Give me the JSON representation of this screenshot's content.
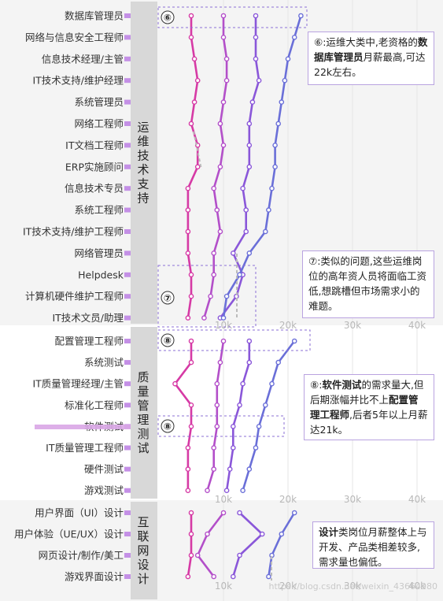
{
  "chart_data": {
    "type": "line",
    "x_ticks": [
      "10k",
      "20k",
      "30k",
      "40k"
    ],
    "xlim": [
      0,
      40000
    ],
    "grid": true,
    "series": [
      {
        "color": "#d63aa5"
      },
      {
        "color": "#b34fc9"
      },
      {
        "color": "#8a57d9"
      },
      {
        "color": "#6a6fd8"
      }
    ],
    "groups": [
      {
        "name": "运维技术支持",
        "jobs": [
          {
            "name": "数据库管理员",
            "values": [
              5000,
              10000,
              15000,
              22000
            ]
          },
          {
            "name": "网络与信息安全工程师",
            "values": [
              5000,
              10000,
              15000,
              21000
            ]
          },
          {
            "name": "信息技术经理/主管",
            "values": [
              5500,
              10500,
              15000,
              20000
            ]
          },
          {
            "name": "IT技术支持/维护经理",
            "values": [
              6000,
              10500,
              15500,
              19500
            ]
          },
          {
            "name": "系统管理员",
            "values": [
              5500,
              10000,
              14500,
              19000
            ]
          },
          {
            "name": "网络工程师",
            "values": [
              5000,
              9500,
              14000,
              18500
            ]
          },
          {
            "name": "IT文档工程师",
            "values": [
              6000,
              10000,
              14000,
              18000
            ]
          },
          {
            "name": "ERP实施顾问",
            "values": [
              6000,
              9500,
              14000,
              18000
            ]
          },
          {
            "name": "信息技术专员",
            "values": [
              4500,
              8500,
              13000,
              17500
            ]
          },
          {
            "name": "系统工程师",
            "values": [
              4500,
              9000,
              13500,
              17000
            ]
          },
          {
            "name": "IT技术支持/维护工程师",
            "values": [
              4500,
              9500,
              13500,
              16500
            ]
          },
          {
            "name": "网络管理员",
            "values": [
              4500,
              8500,
              11500,
              14000
            ]
          },
          {
            "name": "Helpdesk",
            "values": [
              5000,
              8500,
              13000,
              12500
            ]
          },
          {
            "name": "计算机硬件维护工程师",
            "values": [
              5000,
              8000,
              12000,
              10500
            ]
          },
          {
            "name": "IT技术文员/助理",
            "values": [
              4500,
              7000,
              9500,
              10000
            ]
          }
        ]
      },
      {
        "name": "质量管理测试",
        "jobs": [
          {
            "name": "配置管理工程师",
            "values": [
              5000,
              10000,
              14000,
              21000
            ]
          },
          {
            "name": "系统测试",
            "values": [
              5000,
              9500,
              14000,
              18500
            ]
          },
          {
            "name": "IT质量管理经理/主管",
            "values": [
              2500,
              9000,
              13000,
              17500
            ]
          },
          {
            "name": "标准化工程师",
            "values": [
              5000,
              9000,
              12500,
              16500
            ]
          },
          {
            "name": "软件测试",
            "values": [
              5000,
              9000,
              11500,
              15500
            ]
          },
          {
            "name": "IT质量管理工程师",
            "values": [
              4500,
              8500,
              11500,
              15000
            ]
          },
          {
            "name": "硬件测试",
            "values": [
              4500,
              8500,
              11000,
              14000
            ]
          },
          {
            "name": "游戏测试",
            "values": [
              4500,
              7500,
              10500,
              13000
            ]
          }
        ]
      },
      {
        "name": "互联网设计",
        "jobs": [
          {
            "name": "用户界面（UI）设计",
            "values": [
              5000,
              10000,
              12500,
              21000
            ]
          },
          {
            "name": "用户体验（UE/UX）设计",
            "values": [
              5000,
              7500,
              16000,
              19000
            ]
          },
          {
            "name": "网页设计/制作/美工",
            "values": [
              5000,
              6000,
              12500,
              17500
            ]
          },
          {
            "name": "游戏界面设计",
            "values": [
              4500,
              8500,
              11500,
              17000
            ]
          }
        ]
      }
    ],
    "markers": [
      "⑥",
      "⑦",
      "⑧",
      "⑧"
    ]
  },
  "notes": {
    "n6": [
      {
        "t": "⑥:运维大类中,老资格的"
      },
      {
        "t": "数据库管理员",
        "b": true
      },
      {
        "t": "月薪最高,可达22k左右。"
      }
    ],
    "n7": [
      {
        "t": "⑦:类似的问题,这些运维岗位的高年资人员将面临工资低,想跳槽但市场需求小的难题。"
      }
    ],
    "n8": [
      {
        "t": "⑧:"
      },
      {
        "t": "软件测试",
        "b": true
      },
      {
        "t": "的需求量大,但后期涨幅并比不上"
      },
      {
        "t": "配置管理工程师",
        "b": true
      },
      {
        "t": ",后者5年以上月薪达21k。"
      }
    ],
    "n9": [
      {
        "t": "设计",
        "b": true
      },
      {
        "t": "类岗位月薪整体上与开发、产品类相差较多,需求量也偏低。"
      }
    ]
  },
  "watermark": "https://blog.csdn.net/weixin_43664980"
}
